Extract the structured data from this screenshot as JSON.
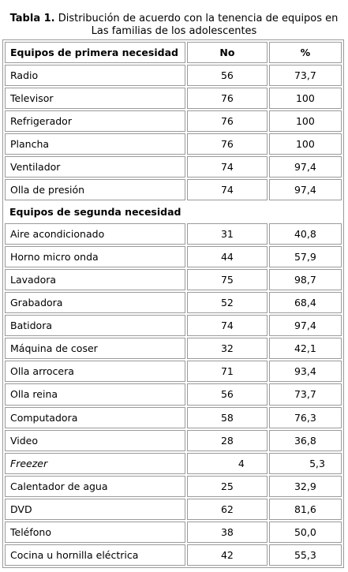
{
  "caption": {
    "label": "Tabla 1.",
    "text_line1": "Distribución de acuerdo con la tenencia de equipos en",
    "text_line2": "Las familias de los adolescentes"
  },
  "table": {
    "headers": [
      "Equipos de primera necesidad",
      "No",
      "%"
    ],
    "section1_rows": [
      [
        "Radio",
        "56",
        "73,7"
      ],
      [
        "Televisor",
        "76",
        "100"
      ],
      [
        "Refrigerador",
        "76",
        "100"
      ],
      [
        "Plancha",
        "76",
        "100"
      ],
      [
        "Ventilador",
        "74",
        "97,4"
      ],
      [
        "Olla de presión",
        "74",
        "97,4"
      ]
    ],
    "section2_label": "Equipos de segunda necesidad",
    "section2_rows": [
      [
        "Aire acondicionado",
        "31",
        "40,8"
      ],
      [
        "Horno micro onda",
        "44",
        "57,9"
      ],
      [
        "Lavadora",
        "75",
        "98,7"
      ],
      [
        "Grabadora",
        "52",
        "68,4"
      ],
      [
        "Batidora",
        "74",
        "97,4"
      ],
      [
        "Máquina de coser",
        "32",
        "42,1"
      ],
      [
        "Olla arrocera",
        "71",
        "93,4"
      ],
      [
        "Olla reina",
        "56",
        "73,7"
      ],
      [
        "Computadora",
        "58",
        "76,3"
      ],
      [
        "Video",
        "28",
        "36,8"
      ],
      [
        "Freezer",
        "4",
        "5,3"
      ],
      [
        "Calentador de agua",
        "25",
        "32,9"
      ],
      [
        "DVD",
        "62",
        "81,6"
      ],
      [
        "Teléfono",
        "38",
        "50,0"
      ],
      [
        "Cocina u hornilla eléctrica",
        "42",
        "55,3"
      ]
    ]
  }
}
